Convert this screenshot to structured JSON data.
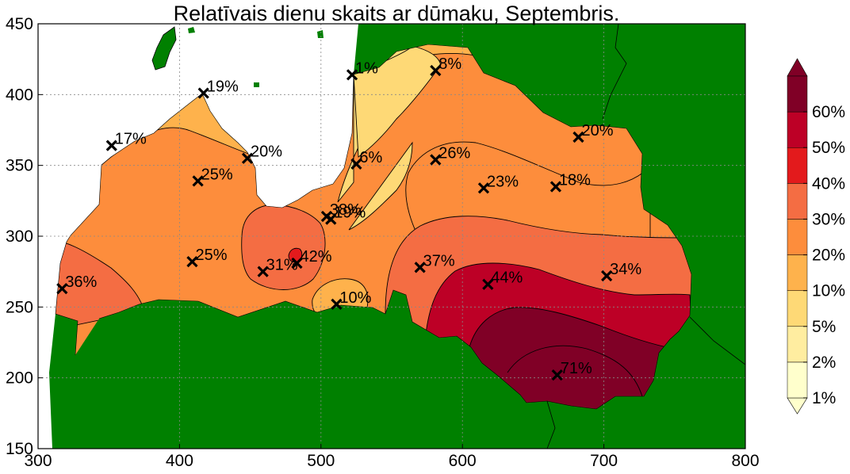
{
  "chart_data": {
    "type": "contour-map",
    "title": "Relatīvais dienu skaits ar dūmaku, Septembris.",
    "xlim": [
      300,
      800
    ],
    "ylim": [
      150,
      450
    ],
    "x_ticks": [
      300,
      400,
      500,
      600,
      700,
      800
    ],
    "y_ticks": [
      150,
      200,
      250,
      300,
      350,
      400,
      450
    ],
    "grid": true,
    "colorbar": {
      "levels": [
        "1%",
        "2%",
        "5%",
        "10%",
        "20%",
        "30%",
        "40%",
        "50%",
        "60%"
      ],
      "colors": [
        "#ffffcc",
        "#ffeda0",
        "#fed976",
        "#feb24c",
        "#fd8d3c",
        "#f46d43",
        "#e31a1c",
        "#bd0026",
        "#800026"
      ],
      "extend": "both"
    },
    "colors": {
      "land_outside": "#008000",
      "sea": "#ffffff",
      "marker": "#000000"
    },
    "stations": [
      {
        "x": 317,
        "y": 263,
        "label": "36%"
      },
      {
        "x": 352,
        "y": 364,
        "label": "17%"
      },
      {
        "x": 417,
        "y": 401,
        "label": "19%"
      },
      {
        "x": 448,
        "y": 355,
        "label": "20%"
      },
      {
        "x": 413,
        "y": 339,
        "label": "25%"
      },
      {
        "x": 409,
        "y": 282,
        "label": "25%"
      },
      {
        "x": 459,
        "y": 275,
        "label": "31%"
      },
      {
        "x": 483,
        "y": 281,
        "label": "42%"
      },
      {
        "x": 504,
        "y": 314,
        "label": "38%"
      },
      {
        "x": 507,
        "y": 312,
        "label": "19%"
      },
      {
        "x": 522,
        "y": 414,
        "label": "1%"
      },
      {
        "x": 525,
        "y": 351,
        "label": "6%"
      },
      {
        "x": 511,
        "y": 252,
        "label": "10%"
      },
      {
        "x": 581,
        "y": 417,
        "label": "8%"
      },
      {
        "x": 581,
        "y": 354,
        "label": "26%"
      },
      {
        "x": 570,
        "y": 278,
        "label": "37%"
      },
      {
        "x": 615,
        "y": 334,
        "label": "23%"
      },
      {
        "x": 618,
        "y": 266,
        "label": "44%"
      },
      {
        "x": 666,
        "y": 335,
        "label": "18%"
      },
      {
        "x": 682,
        "y": 370,
        "label": "20%"
      },
      {
        "x": 702,
        "y": 272,
        "label": "34%"
      },
      {
        "x": 667,
        "y": 202,
        "label": "71%"
      }
    ]
  }
}
